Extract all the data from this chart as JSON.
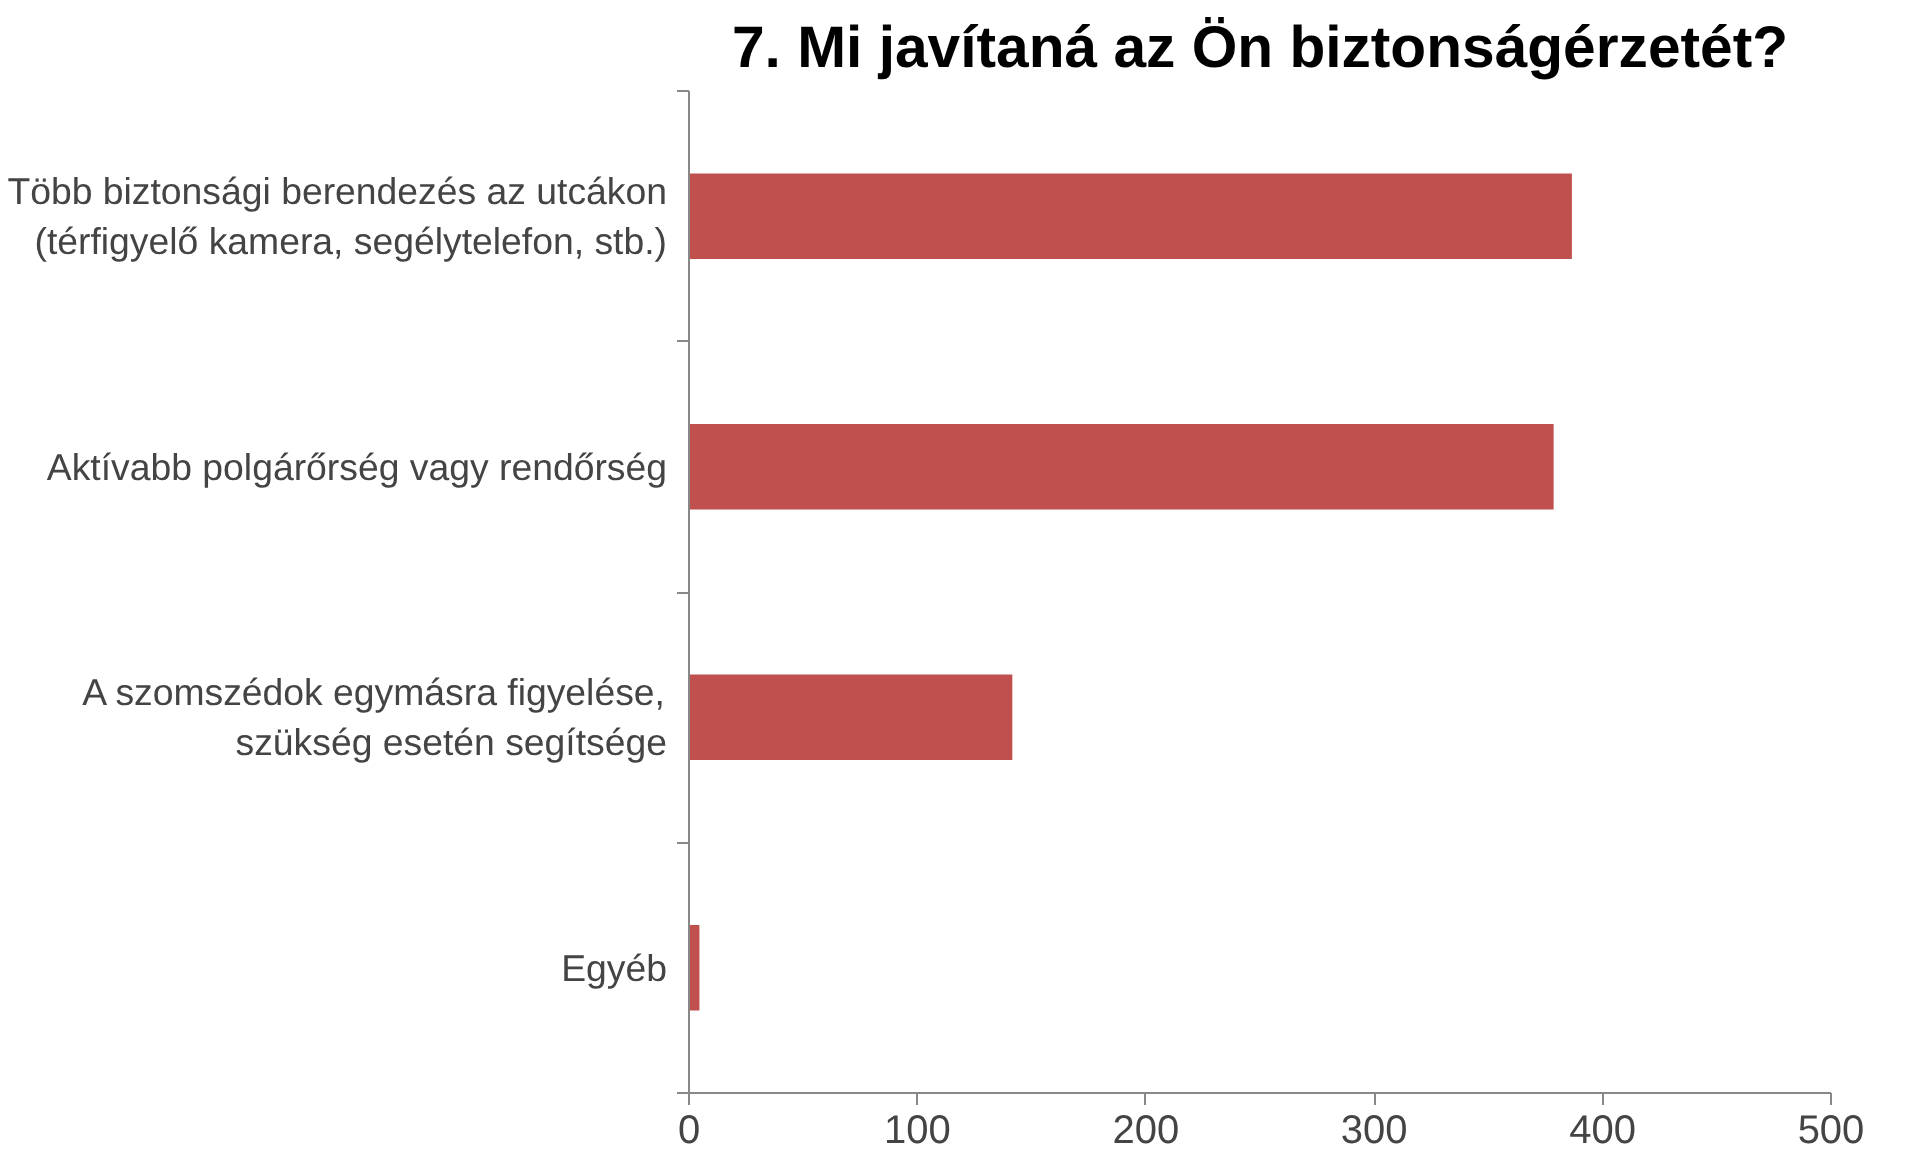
{
  "chart_data": {
    "type": "bar",
    "orientation": "horizontal",
    "title": "7. Mi javítaná az Ön biztonságérzetét?",
    "categories": [
      "Több biztonsági berendezés az utcákon\n(térfigyelő kamera, segélytelefon, stb.)",
      "Aktívabb polgárőrség vagy rendőrség",
      "A szomszédok egymásra figyelése,\nszükség esetén segítsége",
      "Egyéb"
    ],
    "values": [
      387,
      379,
      142,
      5
    ],
    "color": "#c0504d",
    "xlim": [
      0,
      500
    ],
    "xticks": [
      0,
      100,
      200,
      300,
      400,
      500
    ],
    "grid": false
  }
}
